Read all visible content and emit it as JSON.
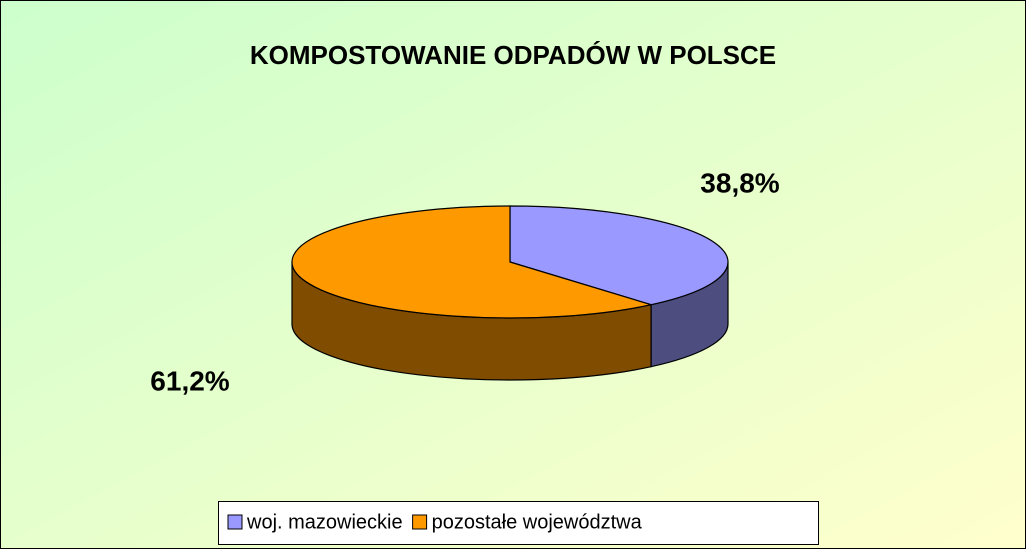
{
  "chart_data": {
    "type": "pie",
    "title": "KOMPOSTOWANIE ODPADÓW W POLSCE",
    "categories": [
      "woj. mazowieckie",
      "pozostałe województwa"
    ],
    "values": [
      38.8,
      61.2
    ],
    "value_labels": [
      "38,8%",
      "61,2%"
    ],
    "colors": [
      "#9999ff",
      "#ff9900"
    ],
    "side_colors": [
      "#4d4d80",
      "#804c00"
    ],
    "legend": "bottom"
  }
}
